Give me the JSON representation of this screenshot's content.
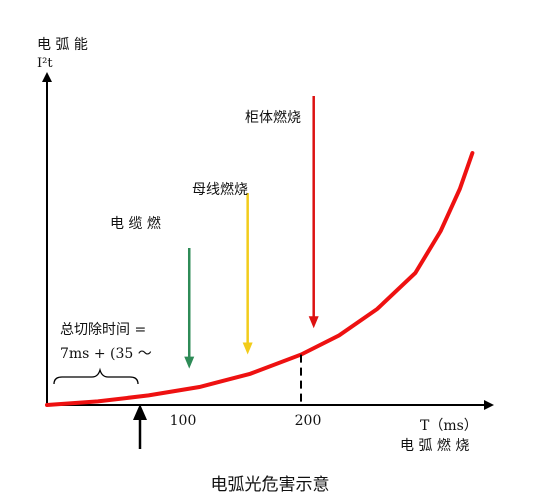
{
  "chart_data": {
    "type": "line",
    "title": "电弧光危害示意",
    "ylabel_line1": "电 弧 能",
    "ylabel_line2": "I²t",
    "xlabel_line1": "T（ms）",
    "xlabel_line2": "电 弧 燃 烧",
    "xticks": [
      {
        "value": 100,
        "label": "100"
      },
      {
        "value": 200,
        "label": "200"
      }
    ],
    "series": [
      {
        "color": "#ee1111",
        "points": [
          [
            0,
            0
          ],
          [
            40,
            3
          ],
          [
            80,
            8
          ],
          [
            120,
            15
          ],
          [
            160,
            26
          ],
          [
            200,
            42
          ],
          [
            230,
            58
          ],
          [
            260,
            80
          ],
          [
            290,
            110
          ],
          [
            310,
            145
          ],
          [
            325,
            180
          ],
          [
            335,
            210
          ]
        ]
      }
    ],
    "marker_line_x": 200,
    "annotations": [
      {
        "text": "电 缆 燃",
        "x": 112,
        "y": 50,
        "color": "#2e8b57"
      },
      {
        "text": "母线燃烧",
        "x": 158,
        "y": 75,
        "color": "#f2cc1a"
      },
      {
        "text": "柜体燃烧",
        "x": 210,
        "y": 120,
        "color": "#dd1111"
      }
    ],
    "note_line1": "总切除时间 =",
    "note_line2": "7ms   +   (35  ～"
  }
}
